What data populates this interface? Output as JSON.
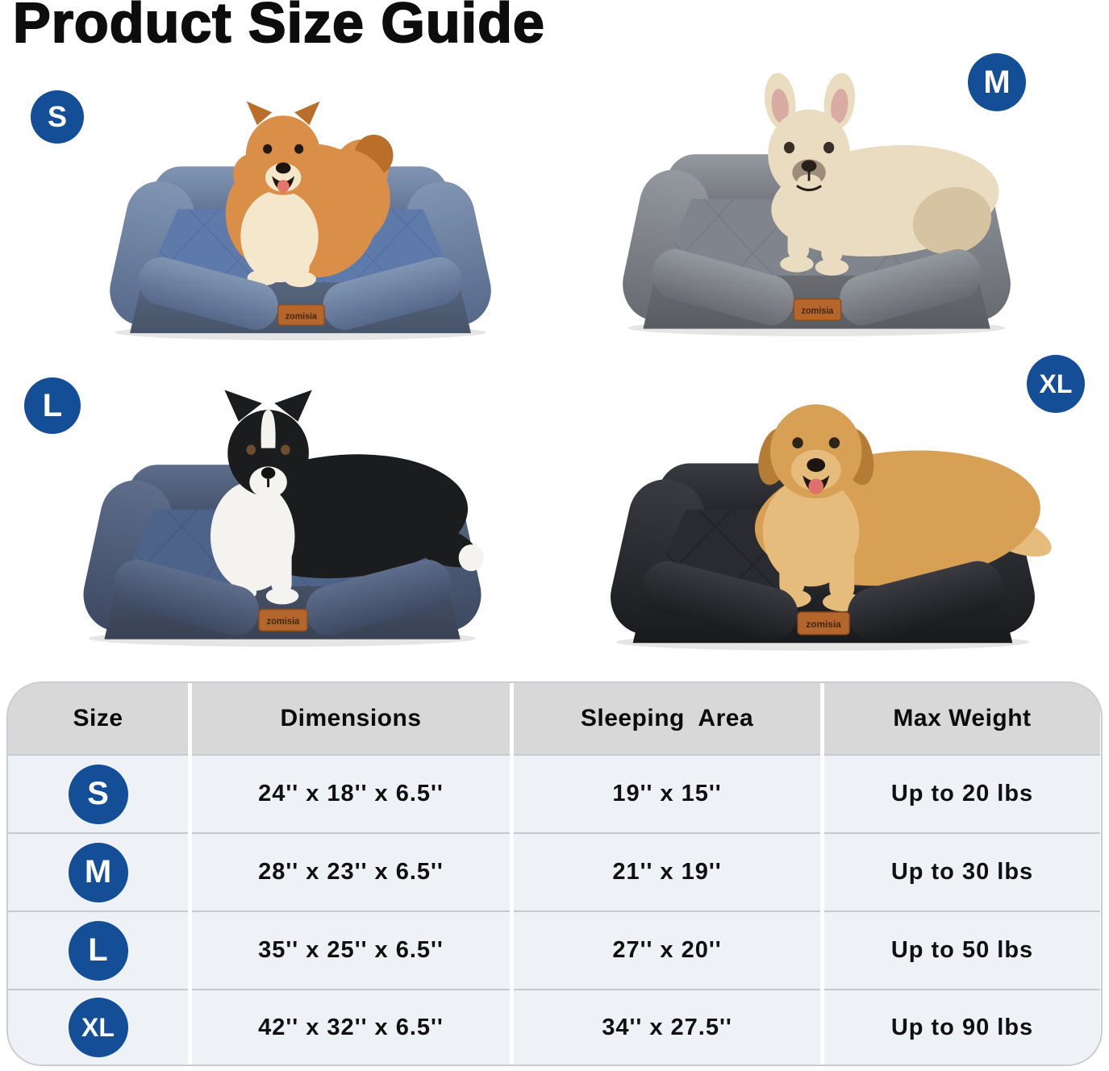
{
  "title": "Product Size Guide",
  "brand": "zomisia",
  "colors": {
    "badge_blue": "#134e97",
    "table_header_bg": "#d8d8d8",
    "table_row_bg": "#eef1f6",
    "table_border": "#c9ccd0",
    "row_divider": "#c6c9ce",
    "tag_bg": "#b4662c",
    "tag_text": "#45270f"
  },
  "beds": [
    {
      "badge": "S",
      "dog": "pomeranian",
      "bed_colors": {
        "bolster_light": "#8195b3",
        "bolster_dark": "#57698b",
        "quilt": "#5e7aab",
        "quilt_line": "#4a628c",
        "base": "#56657e",
        "base_dark": "#475468"
      },
      "dog_colors": {
        "coat": "#d98f47",
        "coat_dark": "#b96f2a",
        "cream": "#f5e7cb",
        "nose": "#1e1510",
        "tongue": "#e4756b",
        "eye": "#231812"
      }
    },
    {
      "badge": "M",
      "dog": "french-bulldog",
      "bed_colors": {
        "bolster_light": "#94989f",
        "bolster_dark": "#686c72",
        "quilt": "#80858d",
        "quilt_line": "#676c74",
        "base": "#696c71",
        "base_dark": "#595c61"
      },
      "dog_colors": {
        "coat": "#eadcc1",
        "shade": "#d6c3a1",
        "muzzle": "#8a7866",
        "nose": "#262019",
        "ear_inner": "#d9aca3",
        "eye": "#3a2f26"
      }
    },
    {
      "badge": "L",
      "dog": "border-collie",
      "bed_colors": {
        "bolster_light": "#5d6d8b",
        "bolster_dark": "#3e4a62",
        "quilt": "#4e6389",
        "quilt_line": "#3d5075",
        "base": "#465065",
        "base_dark": "#3a4254"
      },
      "dog_colors": {
        "coat": "#1b1c1e",
        "white": "#f4f3f0",
        "eye": "#6b4f30",
        "nose": "#121212"
      }
    },
    {
      "badge": "XL",
      "dog": "golden-retriever",
      "bed_colors": {
        "bolster_light": "#3a3b41",
        "bolster_dark": "#1c1d21",
        "quilt": "#2a2b30",
        "quilt_line": "#141519",
        "base": "#232428",
        "base_dark": "#191a1e"
      },
      "dog_colors": {
        "coat": "#d7a055",
        "coat_light": "#e6bc7c",
        "coat_dark": "#b47c35",
        "nose": "#1c1612",
        "tongue": "#e0706a",
        "eye": "#2f2418"
      }
    }
  ],
  "table": {
    "headers": [
      "Size",
      "Dimensions",
      "Sleeping  Area",
      "Max Weight"
    ],
    "rows": [
      {
        "size": "S",
        "dimensions": "24'' x 18'' x 6.5''",
        "sleeping_area": "19'' x 15''",
        "max_weight": "Up to 20 lbs"
      },
      {
        "size": "M",
        "dimensions": "28'' x 23'' x 6.5''",
        "sleeping_area": "21'' x 19''",
        "max_weight": "Up to 30 lbs"
      },
      {
        "size": "L",
        "dimensions": "35'' x 25'' x 6.5''",
        "sleeping_area": "27'' x 20''",
        "max_weight": "Up to 50 lbs"
      },
      {
        "size": "XL",
        "dimensions": "42'' x 32'' x 6.5''",
        "sleeping_area": "34'' x 27.5''",
        "max_weight": "Up to 90 lbs"
      }
    ]
  },
  "chart_data": {
    "type": "table",
    "columns": [
      "Size",
      "Dimensions",
      "Sleeping  Area",
      "Max Weight"
    ],
    "rows": [
      [
        "S",
        "24'' x 18'' x 6.5''",
        "19'' x 15''",
        "Up to 20 lbs"
      ],
      [
        "M",
        "28'' x 23'' x 6.5''",
        "21'' x 19''",
        "Up to 30 lbs"
      ],
      [
        "L",
        "35'' x 25'' x 6.5''",
        "27'' x 20''",
        "Up to 50 lbs"
      ],
      [
        "XL",
        "42'' x 32'' x 6.5''",
        "34'' x 27.5''",
        "Up to 90 lbs"
      ]
    ]
  }
}
